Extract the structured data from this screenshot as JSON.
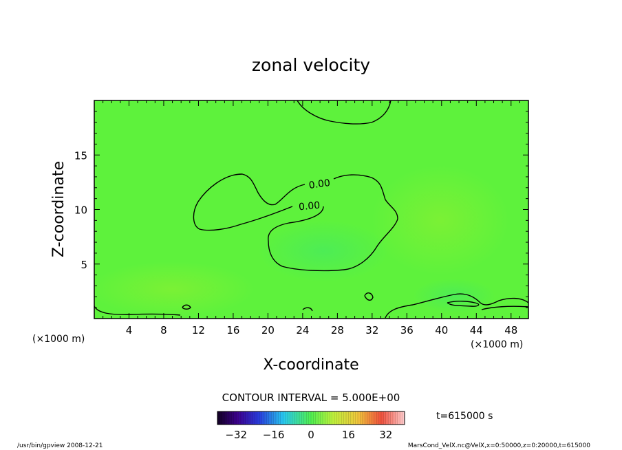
{
  "chart_data": {
    "type": "heatmap",
    "title": "zonal velocity",
    "xlabel": "X-coordinate",
    "ylabel": "Z-coordinate",
    "x_unit_left": "(×1000 m)",
    "x_unit_right": "(×1000 m)",
    "x_ticks": [
      4,
      8,
      12,
      16,
      20,
      24,
      28,
      32,
      36,
      40,
      44,
      48
    ],
    "y_ticks": [
      5,
      10,
      15
    ],
    "xlim": [
      0,
      50
    ],
    "ylim": [
      0,
      20
    ],
    "contour_labels": [
      "0.00",
      "0.00"
    ],
    "contour_interval": "CONTOUR INTERVAL = 5.000E+00",
    "time_label": "t=615000 s",
    "colorbar": {
      "range": [
        -40,
        40
      ],
      "ticks": [
        "−32",
        "−16",
        "0",
        "16",
        "32"
      ]
    },
    "base_color": "#5ef23c"
  },
  "footer": {
    "left": "/usr/bin/gpview  2008-12-21",
    "right": "MarsCond_VelX.nc@VelX,x=0:50000,z=0:20000,t=615000"
  }
}
